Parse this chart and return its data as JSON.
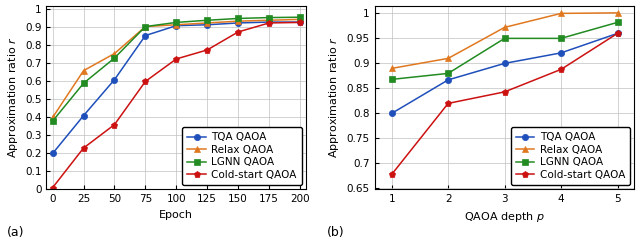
{
  "plot_a": {
    "xlabel": "Epoch",
    "ylabel": "Approximation ratio $r$",
    "label": "(a)",
    "xlim": [
      -5,
      205
    ],
    "ylim": [
      0,
      1.02
    ],
    "xticks": [
      0,
      25,
      50,
      75,
      100,
      125,
      150,
      175,
      200
    ],
    "yticks": [
      0,
      0.1,
      0.2,
      0.3,
      0.4,
      0.5,
      0.6,
      0.7,
      0.8,
      0.9,
      1.0
    ],
    "ytick_labels": [
      "0",
      "0.1",
      "0.2",
      "0.3",
      "0.4",
      "0.5",
      "0.6",
      "0.7",
      "0.8",
      "0.9",
      "1"
    ],
    "series": {
      "TQA QAOA": {
        "x": [
          0,
          25,
          50,
          75,
          100,
          125,
          150,
          175,
          200
        ],
        "y": [
          0.2,
          0.41,
          0.61,
          0.855,
          0.91,
          0.915,
          0.925,
          0.93,
          0.93
        ],
        "color": "#1f4fba",
        "marker": "o",
        "linestyle": "-"
      },
      "Relax QAOA": {
        "x": [
          0,
          25,
          50,
          75,
          100,
          125,
          150,
          175,
          200
        ],
        "y": [
          0.4,
          0.66,
          0.755,
          0.905,
          0.915,
          0.925,
          0.935,
          0.94,
          0.945
        ],
        "color": "#e07820",
        "marker": "^",
        "linestyle": "-"
      },
      "LGNN QAOA": {
        "x": [
          0,
          25,
          50,
          75,
          100,
          125,
          150,
          175,
          200
        ],
        "y": [
          0.38,
          0.59,
          0.73,
          0.905,
          0.928,
          0.94,
          0.95,
          0.955,
          0.957
        ],
        "color": "#228b22",
        "marker": "s",
        "linestyle": "-"
      },
      "Cold-start QAOA": {
        "x": [
          0,
          25,
          50,
          75,
          100,
          125,
          150,
          175,
          200
        ],
        "y": [
          0.01,
          0.23,
          0.36,
          0.6,
          0.725,
          0.775,
          0.875,
          0.925,
          0.928
        ],
        "color": "#cc1111",
        "marker": "p",
        "linestyle": "-"
      }
    }
  },
  "plot_b": {
    "xlabel": "QAOA depth $p$",
    "ylabel": "Approximation ratio $r$",
    "label": "(b)",
    "xlim": [
      0.7,
      5.3
    ],
    "ylim": [
      0.648,
      1.015
    ],
    "xticks": [
      1,
      2,
      3,
      4,
      5
    ],
    "yticks": [
      0.65,
      0.7,
      0.75,
      0.8,
      0.85,
      0.9,
      0.95,
      1.0
    ],
    "ytick_labels": [
      "0.65",
      "0.7",
      "0.75",
      "0.8",
      "0.85",
      "0.9",
      "0.95",
      "1"
    ],
    "series": {
      "TQA QAOA": {
        "x": [
          1,
          2,
          3,
          4,
          5
        ],
        "y": [
          0.8,
          0.867,
          0.9,
          0.921,
          0.96
        ],
        "color": "#1f4fba",
        "marker": "o",
        "linestyle": "-"
      },
      "Relax QAOA": {
        "x": [
          1,
          2,
          3,
          4,
          5
        ],
        "y": [
          0.89,
          0.91,
          0.972,
          1.0,
          1.001
        ],
        "color": "#e07820",
        "marker": "^",
        "linestyle": "-"
      },
      "LGNN QAOA": {
        "x": [
          1,
          2,
          3,
          4,
          5
        ],
        "y": [
          0.868,
          0.88,
          0.95,
          0.95,
          0.982
        ],
        "color": "#228b22",
        "marker": "s",
        "linestyle": "-"
      },
      "Cold-start QAOA": {
        "x": [
          1,
          2,
          3,
          4,
          5
        ],
        "y": [
          0.678,
          0.82,
          0.843,
          0.888,
          0.96
        ],
        "color": "#cc1111",
        "marker": "p",
        "linestyle": "-"
      }
    }
  },
  "legend_order": [
    "TQA QAOA",
    "Relax QAOA",
    "LGNN QAOA",
    "Cold-start QAOA"
  ],
  "fontsize": 8,
  "tick_fontsize": 7.5,
  "label_fontsize": 9,
  "marker_size": 4.5,
  "linewidth": 1.1
}
